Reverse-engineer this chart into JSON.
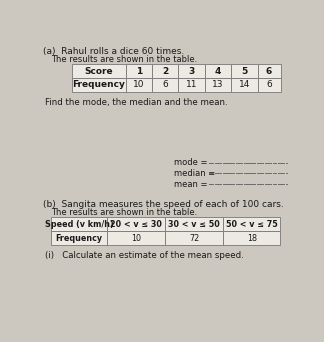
{
  "title_a": "(a)  Rahul rolls a dice 60 times.",
  "subtitle_a": "The results are shown in the table.",
  "table_a_headers": [
    "Score",
    "1",
    "2",
    "3",
    "4",
    "5",
    "6"
  ],
  "table_a_row1_label": "Frequency",
  "table_a_row1_values": [
    "10",
    "6",
    "11",
    "13",
    "14",
    "6"
  ],
  "find_text": "Find the mode, the median and the mean.",
  "mode_label": "mode =",
  "median_label": "median =",
  "mean_label": "mean =",
  "title_b": "(b)  Sangita measures the speed of each of 100 cars.",
  "subtitle_b": "The results are shown in the table.",
  "table_b_headers": [
    "Speed (v km/h)",
    "20 < v ≤ 30",
    "30 < v ≤ 50",
    "50 < v ≤ 75"
  ],
  "table_b_row1_label": "Frequency",
  "table_b_row1_values": [
    "10",
    "72",
    "18"
  ],
  "part_i_text": "(i)   Calculate an estimate of the mean speed.",
  "bg_color": "#ccc8c0",
  "text_color": "#1a1a1a",
  "table_bg": "#ede9e3",
  "table_border": "#777777",
  "header_bar_top": "#b0b0b0"
}
